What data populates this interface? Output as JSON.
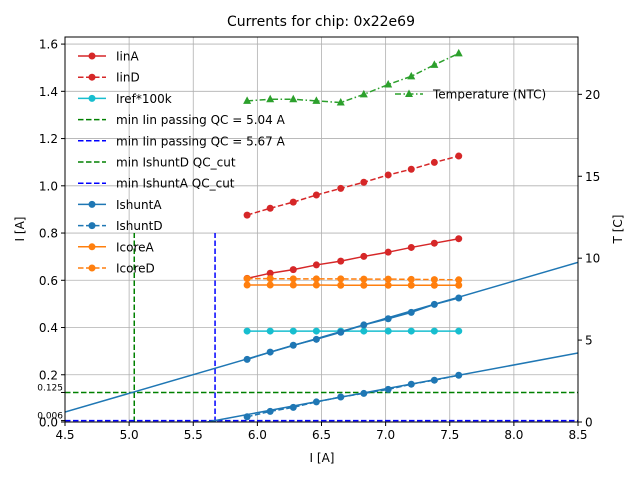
{
  "chart_data": {
    "type": "line",
    "title": "Currents for chip: 0x22e69",
    "xlabel": "I [A]",
    "ylabel": "I [A]",
    "y2label": "T [C]",
    "xlim": [
      4.5,
      8.5
    ],
    "ylim": [
      0.0,
      1.63
    ],
    "y2lim": [
      0,
      23.5
    ],
    "grid": true,
    "x_ticks": [
      4.5,
      5.0,
      5.5,
      6.0,
      6.5,
      7.0,
      7.5,
      8.0,
      8.5
    ],
    "x_tick_labels": [
      "4.5",
      "5.0",
      "5.5",
      "6.0",
      "6.5",
      "7.0",
      "7.5",
      "8.0",
      "8.5"
    ],
    "y_ticks": [
      0.0,
      0.2,
      0.4,
      0.6,
      0.8,
      1.0,
      1.2,
      1.4,
      1.6
    ],
    "y_tick_labels": [
      "0.0",
      "0.2",
      "0.4",
      "0.6",
      "0.8",
      "1.0",
      "1.2",
      "1.4",
      "1.6"
    ],
    "y_extra_ticks": [
      {
        "value": 0.125,
        "label": "0.125"
      },
      {
        "value": 0.006,
        "label": "0.006"
      }
    ],
    "y2_ticks": [
      0,
      5,
      10,
      15,
      20
    ],
    "y2_tick_labels": [
      "0",
      "5",
      "10",
      "15",
      "20"
    ],
    "x": [
      5.92,
      6.1,
      6.28,
      6.46,
      6.65,
      6.83,
      7.02,
      7.2,
      7.38,
      7.57
    ],
    "series": [
      {
        "name": "IinA",
        "axis": "left",
        "color": "#d62728",
        "style": "solid",
        "marker": "circle",
        "values": [
          0.608,
          0.63,
          0.645,
          0.665,
          0.681,
          0.701,
          0.719,
          0.739,
          0.757,
          0.776
        ]
      },
      {
        "name": "IinD",
        "axis": "left",
        "color": "#d62728",
        "style": "dashed",
        "marker": "circle",
        "values": [
          0.876,
          0.905,
          0.931,
          0.961,
          0.989,
          1.015,
          1.046,
          1.07,
          1.099,
          1.126
        ]
      },
      {
        "name": "Iref*100k",
        "axis": "left",
        "color": "#17becf",
        "style": "solid",
        "marker": "circle",
        "values": [
          0.385,
          0.385,
          0.385,
          0.385,
          0.385,
          0.385,
          0.385,
          0.385,
          0.385,
          0.385
        ]
      },
      {
        "name": "IshuntA",
        "axis": "left",
        "color": "#1f77b4",
        "style": "solid",
        "marker": "circle",
        "values": [
          0.265,
          0.296,
          0.325,
          0.35,
          0.38,
          0.411,
          0.437,
          0.464,
          0.498,
          0.525
        ]
      },
      {
        "name": "IshuntD",
        "axis": "left",
        "color": "#1f77b4",
        "style": "dashed",
        "marker": "circle",
        "values": [
          0.022,
          0.045,
          0.062,
          0.085,
          0.106,
          0.121,
          0.138,
          0.16,
          0.177,
          0.198
        ]
      },
      {
        "name": "IcoreA",
        "axis": "left",
        "color": "#ff7f0e",
        "style": "solid",
        "marker": "circle",
        "values": [
          0.58,
          0.58,
          0.58,
          0.58,
          0.579,
          0.579,
          0.579,
          0.579,
          0.579,
          0.579
        ]
      },
      {
        "name": "IcoreD",
        "axis": "left",
        "color": "#ff7f0e",
        "style": "dashed",
        "marker": "circle",
        "values": [
          0.607,
          0.607,
          0.606,
          0.606,
          0.606,
          0.605,
          0.605,
          0.604,
          0.603,
          0.602
        ]
      },
      {
        "name": "Temperature (NTC)",
        "axis": "right",
        "color": "#2ca02c",
        "style": "dashdot",
        "marker": "triangle",
        "values": [
          19.6,
          19.7,
          19.7,
          19.6,
          19.5,
          20.0,
          20.6,
          21.1,
          21.8,
          22.5
        ]
      }
    ],
    "fit_lines": [
      {
        "name": "IshuntA fit",
        "color": "#1f77b4",
        "x": [
          4.5,
          8.5
        ],
        "y": [
          0.042,
          0.676
        ]
      },
      {
        "name": "IshuntD fit",
        "color": "#1f77b4",
        "x": [
          5.61,
          8.5
        ],
        "y": [
          0.0,
          0.292
        ]
      }
    ],
    "reference_lines": [
      {
        "name": "min Iin passing QC = 5.04 A",
        "orientation": "vertical",
        "value": 5.04,
        "range": [
          0.0,
          0.8
        ],
        "color": "#008000",
        "style": "dashed"
      },
      {
        "name": "min Iin passing QC = 5.67 A",
        "orientation": "vertical",
        "value": 5.67,
        "range": [
          0.0,
          0.8
        ],
        "color": "#0000ff",
        "style": "dashed"
      },
      {
        "name": "min IshuntD QC_cut",
        "orientation": "horizontal",
        "value": 0.125,
        "color": "#008000",
        "style": "dashed"
      },
      {
        "name": "min IshuntA QC_cut",
        "orientation": "horizontal",
        "value": 0.006,
        "color": "#0000ff",
        "style": "dashed"
      }
    ],
    "legend": {
      "placement": "upper-left",
      "entries": [
        {
          "label": "IinA",
          "color": "#d62728",
          "style": "solid",
          "marker": "circle"
        },
        {
          "label": "IinD",
          "color": "#d62728",
          "style": "dashed",
          "marker": "circle"
        },
        {
          "label": "Iref*100k",
          "color": "#17becf",
          "style": "solid",
          "marker": "circle"
        },
        {
          "label": "min Iin passing QC = 5.04 A",
          "color": "#008000",
          "style": "dashed",
          "marker": "none"
        },
        {
          "label": "min Iin passing QC = 5.67 A",
          "color": "#0000ff",
          "style": "dashed",
          "marker": "none"
        },
        {
          "label": "min IshuntD QC_cut",
          "color": "#008000",
          "style": "dashed",
          "marker": "none"
        },
        {
          "label": "min IshuntA QC_cut",
          "color": "#0000ff",
          "style": "dashed",
          "marker": "none"
        },
        {
          "label": "IshuntA",
          "color": "#1f77b4",
          "style": "solid",
          "marker": "circle"
        },
        {
          "label": "IshuntD",
          "color": "#1f77b4",
          "style": "dashed",
          "marker": "circle"
        },
        {
          "label": "IcoreA",
          "color": "#ff7f0e",
          "style": "solid",
          "marker": "circle"
        },
        {
          "label": "IcoreD",
          "color": "#ff7f0e",
          "style": "dashed",
          "marker": "circle"
        }
      ]
    },
    "legend2": {
      "placement": "upper-right",
      "entries": [
        {
          "label": "Temperature (NTC)",
          "color": "#2ca02c",
          "style": "dashdot",
          "marker": "triangle"
        }
      ]
    }
  }
}
